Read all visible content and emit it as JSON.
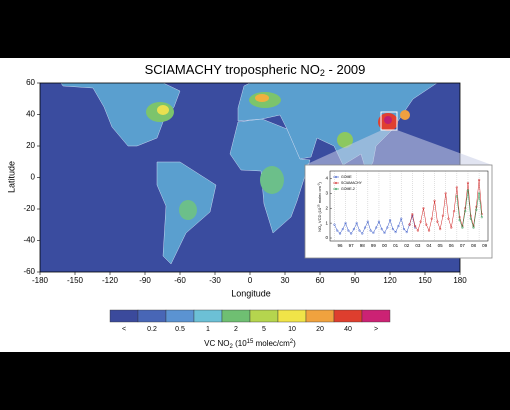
{
  "map": {
    "title": [
      "SCIAMACHY tropospheric NO",
      "2",
      " - 2009"
    ],
    "xlabel": "Longitude",
    "ylabel": "Latitude",
    "xlim": [
      -180,
      180
    ],
    "ylim": [
      -60,
      60
    ],
    "xticks": [
      -180,
      -150,
      -120,
      -90,
      -60,
      -30,
      0,
      30,
      60,
      90,
      120,
      150,
      180
    ],
    "yticks": [
      60,
      40,
      20,
      0,
      -20,
      -40,
      -60
    ]
  },
  "colorbar": {
    "labels": [
      "<",
      0.2,
      0.5,
      1,
      2,
      5,
      10,
      20,
      40,
      ">"
    ],
    "colors": [
      "#3b4a9c",
      "#4866b6",
      "#5b93d2",
      "#6cc0d6",
      "#6fbf72",
      "#b5d54e",
      "#f0e448",
      "#f0a23e",
      "#de3e2e",
      "#cc2274"
    ],
    "label": [
      "VC NO",
      "2",
      "  (10",
      "15",
      " molec/cm",
      "2",
      ")"
    ]
  },
  "chart_data": {
    "type": "line",
    "ylabel": [
      "NO",
      "2",
      " VCD (10",
      "15",
      " molec cm",
      "-2",
      ")"
    ],
    "xlim": [
      1995.6,
      2009.8
    ],
    "ylim": [
      -0.2,
      4.5
    ],
    "yticks": [
      0,
      1,
      2,
      3,
      4
    ],
    "xticks": [
      {
        "value": 1996,
        "label": "96"
      },
      {
        "value": 1997,
        "label": "97"
      },
      {
        "value": 1998,
        "label": "98"
      },
      {
        "value": 1999,
        "label": "99"
      },
      {
        "value": 2000,
        "label": "00"
      },
      {
        "value": 2001,
        "label": "01"
      },
      {
        "value": 2002,
        "label": "02"
      },
      {
        "value": 2003,
        "label": "03"
      },
      {
        "value": 2004,
        "label": "04"
      },
      {
        "value": 2005,
        "label": "05"
      },
      {
        "value": 2006,
        "label": "06"
      },
      {
        "value": 2007,
        "label": "07"
      },
      {
        "value": 2008,
        "label": "08"
      },
      {
        "value": 2009,
        "label": "09"
      }
    ],
    "series": [
      {
        "name": "GOME",
        "color": "#3355c8",
        "x": [
          1996,
          1996.25,
          1996.5,
          1996.75,
          1997,
          1997.25,
          1997.5,
          1997.75,
          1998,
          1998.25,
          1998.5,
          1998.75,
          1999,
          1999.25,
          1999.5,
          1999.75,
          2000,
          2000.25,
          2000.5,
          2000.75,
          2001,
          2001.25,
          2001.5,
          2001.75,
          2002,
          2002.25,
          2002.5,
          2002.75,
          2003,
          2003.25
        ],
        "values": [
          0.9,
          0.5,
          0.3,
          0.6,
          1.0,
          0.5,
          0.3,
          0.6,
          1.0,
          0.5,
          0.3,
          0.7,
          1.1,
          0.5,
          0.35,
          0.7,
          1.1,
          0.6,
          0.35,
          0.7,
          1.2,
          0.6,
          0.4,
          0.8,
          1.3,
          0.6,
          0.4,
          0.9,
          1.5,
          0.7
        ]
      },
      {
        "name": "SCIAMACHY",
        "color": "#d02020",
        "x": [
          2002.75,
          2003,
          2003.25,
          2003.5,
          2003.75,
          2004,
          2004.25,
          2004.5,
          2004.75,
          2005,
          2005.25,
          2005.5,
          2005.75,
          2006,
          2006.25,
          2006.5,
          2006.75,
          2007,
          2007.25,
          2007.5,
          2007.75,
          2008,
          2008.25,
          2008.5,
          2008.75,
          2009,
          2009.25
        ],
        "values": [
          0.9,
          1.6,
          0.8,
          0.5,
          1.1,
          2.0,
          0.9,
          0.5,
          1.3,
          2.5,
          1.1,
          0.6,
          1.5,
          3.0,
          1.3,
          0.7,
          1.8,
          3.4,
          1.4,
          0.8,
          2.0,
          3.7,
          1.5,
          0.8,
          2.1,
          3.9,
          1.6
        ]
      },
      {
        "name": "GOME-2",
        "color": "#209048",
        "x": [
          2007,
          2007.25,
          2007.5,
          2007.75,
          2008,
          2008.25,
          2008.5,
          2008.75,
          2009,
          2009.25
        ],
        "values": [
          2.8,
          1.2,
          0.7,
          1.8,
          3.2,
          1.3,
          0.7,
          1.9,
          3.0,
          1.4
        ]
      }
    ]
  }
}
